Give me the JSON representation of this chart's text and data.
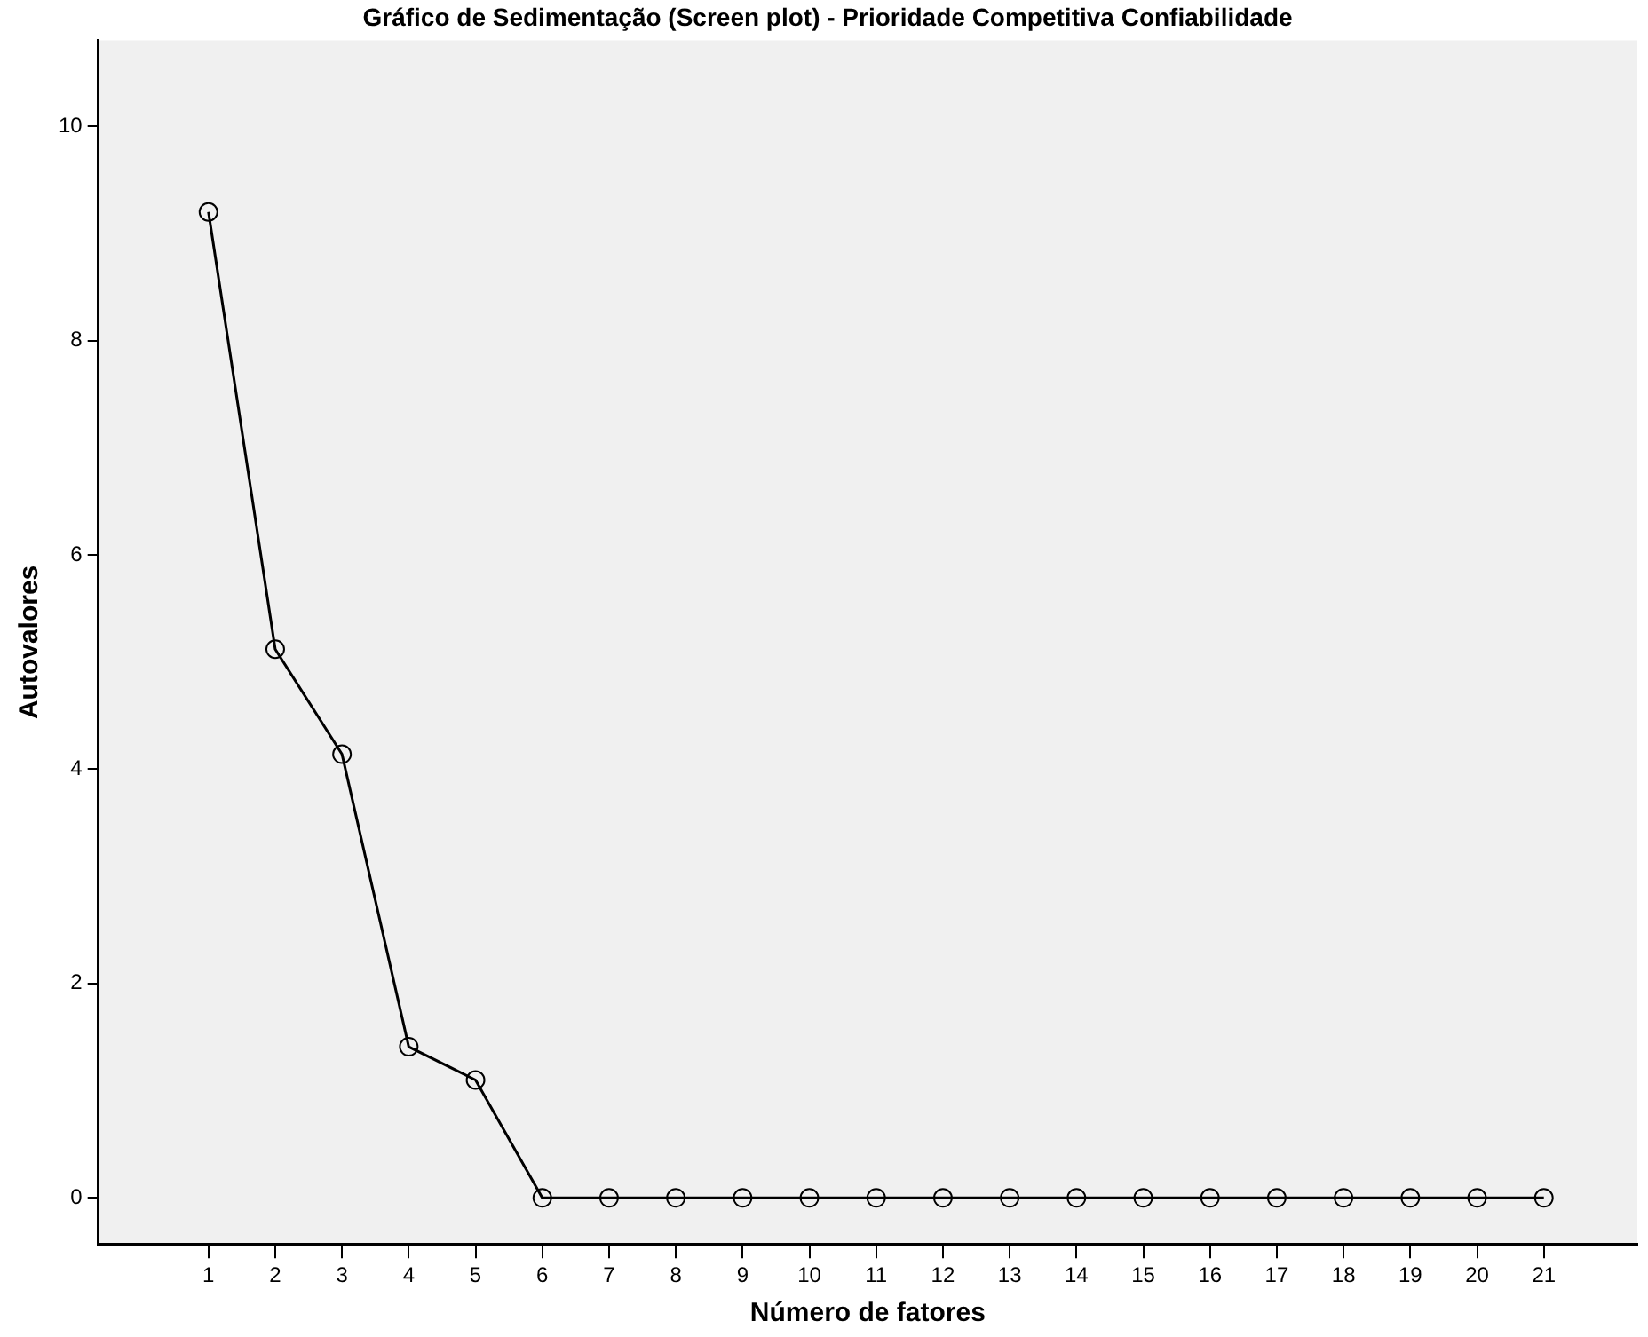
{
  "chart_data": {
    "type": "line",
    "title": "Gráfico de Sedimentação (Screen plot) - Prioridade Competitiva Confiabilidade",
    "xlabel": "Número de fatores",
    "ylabel": "Autovalores",
    "x": [
      1,
      2,
      3,
      4,
      5,
      6,
      7,
      8,
      9,
      10,
      11,
      12,
      13,
      14,
      15,
      16,
      17,
      18,
      19,
      20,
      21
    ],
    "series": [
      {
        "color": "#000000",
        "values": [
          9.2,
          5.12,
          4.14,
          1.41,
          1.1,
          0,
          0,
          0,
          0,
          0,
          0,
          0,
          0,
          0,
          0,
          0,
          0,
          0,
          0,
          0,
          0
        ]
      }
    ],
    "xlim": [
      -0.65,
      22.4
    ],
    "xticks": [
      1,
      2,
      3,
      4,
      5,
      6,
      7,
      8,
      9,
      10,
      11,
      12,
      13,
      14,
      15,
      16,
      17,
      18,
      19,
      20,
      21
    ],
    "ylim": [
      -0.43,
      10.8
    ],
    "yticks": [
      0,
      2,
      4,
      6,
      8,
      10
    ],
    "grid": false,
    "legend": false,
    "marker": "circle",
    "line_style": "solid"
  }
}
